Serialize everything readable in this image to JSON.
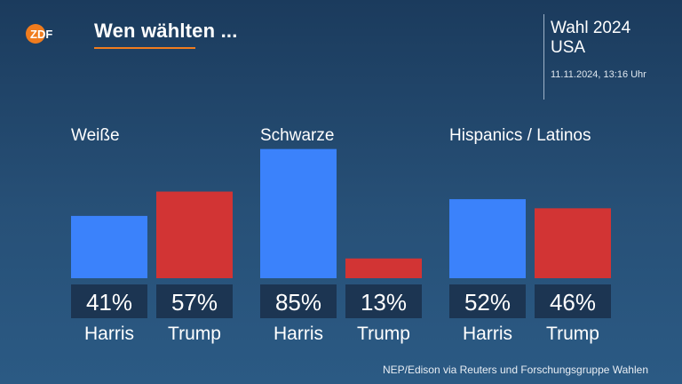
{
  "header": {
    "logo_text": "ZDF",
    "title": "Wen wählten ...",
    "side_title_line1": "Wahl 2024",
    "side_title_line2": "USA",
    "timestamp": "11.11.2024, 13:16 Uhr"
  },
  "source": "NEP/Edison via Reuters und Forschungsgruppe Wahlen",
  "colors": {
    "harris": "#3b82fb",
    "trump": "#d23434",
    "label_box": "#1c3552",
    "accent": "#f07c1e"
  },
  "chart_data": {
    "type": "bar",
    "title": "Wen wählten ...",
    "unit": "%",
    "groups": [
      {
        "name": "Weiße",
        "bars": [
          {
            "candidate": "Harris",
            "value": 41,
            "label": "41%"
          },
          {
            "candidate": "Trump",
            "value": 57,
            "label": "57%"
          }
        ]
      },
      {
        "name": "Schwarze",
        "bars": [
          {
            "candidate": "Harris",
            "value": 85,
            "label": "85%"
          },
          {
            "candidate": "Trump",
            "value": 13,
            "label": "13%"
          }
        ]
      },
      {
        "name": "Hispanics / Latinos",
        "bars": [
          {
            "candidate": "Harris",
            "value": 52,
            "label": "52%"
          },
          {
            "candidate": "Trump",
            "value": 46,
            "label": "46%"
          }
        ]
      }
    ],
    "ylim": [
      0,
      100
    ],
    "grid": false
  }
}
